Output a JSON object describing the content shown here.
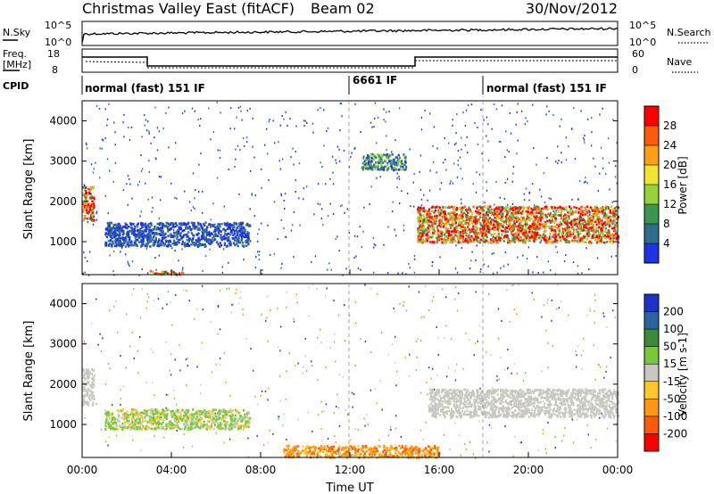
{
  "header": {
    "title": "Christmas Valley East (fitACF)",
    "beam": "Beam 02",
    "date": "30/Nov/2012"
  },
  "noise_panel": {
    "left_label": "N.Sky",
    "right_label": "N.Search",
    "left_ticks": [
      "10^5",
      "10^0"
    ],
    "right_ticks": [
      "10^5",
      "10^0"
    ]
  },
  "freq_panel": {
    "left_label_line1": "Freq.",
    "left_label_line2": "[MHz]",
    "right_label": "Nave",
    "left_ticks": [
      "18",
      "8"
    ],
    "right_ticks": [
      "60",
      "0"
    ]
  },
  "cpid_panel": {
    "label": "CPID",
    "segments": [
      {
        "name": "normal (fast) 151 IF",
        "start_hour": 0.0
      },
      {
        "name": "6661 IF",
        "start_hour": 12.0
      },
      {
        "name": "normal (fast) 151 IF",
        "start_hour": 18.0
      }
    ]
  },
  "chart_data": [
    {
      "type": "heatmap",
      "name": "power",
      "ylabel": "Slant Range [km]",
      "ylim": [
        180,
        4500
      ],
      "xlim": [
        0,
        24
      ],
      "yticks": [
        "1000",
        "2000",
        "3000",
        "4000"
      ],
      "colorbar_label": "Power [dB]",
      "colorbar_ticks": [
        "4",
        "8",
        "12",
        "16",
        "20",
        "24",
        "28"
      ],
      "colors": [
        "#1E32E6",
        "#2D6E8C",
        "#3C9650",
        "#96D23C",
        "#F0E632",
        "#FFA014",
        "#FF5A0A",
        "#FF0000"
      ],
      "features": [
        {
          "x": [
            0.0,
            0.5
          ],
          "y": [
            1500,
            2400
          ],
          "level": "high"
        },
        {
          "x": [
            1.0,
            7.5
          ],
          "y": [
            900,
            1500
          ],
          "level": "low"
        },
        {
          "x": [
            3.0,
            4.5
          ],
          "y": [
            200,
            300
          ],
          "level": "high"
        },
        {
          "x": [
            12.5,
            14.5
          ],
          "y": [
            2800,
            3200
          ],
          "level": "medium"
        },
        {
          "x": [
            15.0,
            24.0
          ],
          "y": [
            1000,
            1900
          ],
          "level": "high"
        }
      ]
    },
    {
      "type": "heatmap",
      "name": "velocity",
      "ylabel": "Slant Range [km]",
      "xlabel": "Time UT",
      "ylim": [
        180,
        4500
      ],
      "xlim": [
        0,
        24
      ],
      "xticks": [
        "00:00",
        "04:00",
        "08:00",
        "12:00",
        "16:00",
        "20:00",
        "00:00"
      ],
      "yticks": [
        "1000",
        "2000",
        "3000",
        "4000"
      ],
      "colorbar_label": "Velocity [m s-1]",
      "colorbar_ticks": [
        "200",
        "100",
        "50",
        "15",
        "-15",
        "-50",
        "-100",
        "-200"
      ],
      "colors": [
        "#1E32C8",
        "#2D64A0",
        "#3C8C3C",
        "#78C83C",
        "#C8C8C0",
        "#FFC828",
        "#FF9614",
        "#FF5A0A",
        "#FF0000"
      ],
      "features": [
        {
          "x": [
            0.0,
            0.5
          ],
          "y": [
            1500,
            2400
          ],
          "level": "ground"
        },
        {
          "x": [
            15.5,
            24.0
          ],
          "y": [
            1200,
            1900
          ],
          "level": "ground"
        },
        {
          "x": [
            9.0,
            16.0
          ],
          "y": [
            200,
            500
          ],
          "level": "negative"
        },
        {
          "x": [
            1.0,
            7.5
          ],
          "y": [
            900,
            1400
          ],
          "level": "positive"
        }
      ]
    }
  ]
}
